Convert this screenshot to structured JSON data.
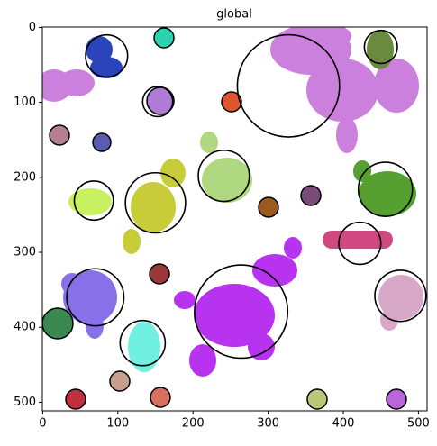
{
  "chart_data": {
    "type": "circles",
    "title": "global",
    "xlim": [
      -0.5,
      511.5
    ],
    "ylim": [
      511.5,
      -0.5
    ],
    "xticks": [
      0,
      100,
      200,
      300,
      400,
      500
    ],
    "yticks": [
      0,
      100,
      200,
      300,
      400,
      500
    ],
    "color": "#000000",
    "x": [
      327,
      85,
      450,
      153,
      241,
      68,
      150,
      456,
      422,
      70,
      264,
      476,
      133
    ],
    "y": [
      78,
      38,
      26,
      99,
      198,
      231,
      234,
      216,
      288,
      360,
      379,
      358,
      421
    ],
    "r": [
      68,
      28,
      22,
      20,
      34,
      26,
      40,
      36,
      28,
      38,
      62,
      34,
      30
    ]
  }
}
